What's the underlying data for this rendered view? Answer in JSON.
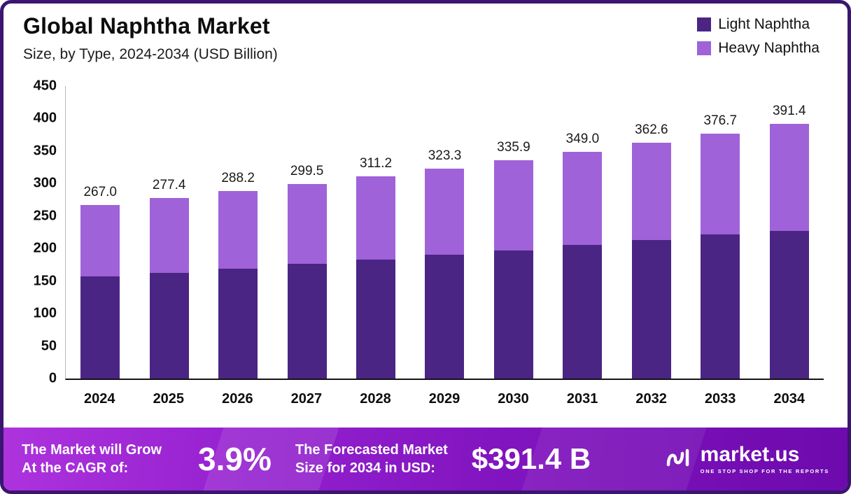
{
  "header": {
    "title": "Global Naphtha Market",
    "subtitle": "Size, by Type, 2024-2034 (USD Billion)"
  },
  "legend": {
    "items": [
      {
        "label": "Light Naphtha",
        "color": "#4a2583"
      },
      {
        "label": "Heavy Naphtha",
        "color": "#a062d8"
      }
    ]
  },
  "chart_data": {
    "type": "bar",
    "stacked": true,
    "title": "Global Naphtha Market",
    "subtitle": "Size, by Type, 2024-2034 (USD Billion)",
    "xlabel": "",
    "ylabel": "",
    "ylim": [
      0,
      450
    ],
    "yticks": [
      0,
      50,
      100,
      150,
      200,
      250,
      300,
      350,
      400,
      450
    ],
    "grid": false,
    "legend_position": "top-right",
    "categories": [
      "2024",
      "2025",
      "2026",
      "2027",
      "2028",
      "2029",
      "2030",
      "2031",
      "2032",
      "2033",
      "2034"
    ],
    "series": [
      {
        "name": "Light Naphtha",
        "color": "#4a2583",
        "values": [
          157.0,
          163.1,
          169.5,
          176.1,
          183.0,
          190.1,
          197.5,
          205.2,
          213.2,
          221.5,
          227.0
        ]
      },
      {
        "name": "Heavy Naphtha",
        "color": "#a062d8",
        "values": [
          110.0,
          114.3,
          118.7,
          123.4,
          128.2,
          133.2,
          138.4,
          143.8,
          149.4,
          155.2,
          164.4
        ]
      }
    ],
    "totals": [
      267.0,
      277.4,
      288.2,
      299.5,
      311.2,
      323.3,
      335.9,
      349.0,
      362.6,
      376.7,
      391.4
    ]
  },
  "banner": {
    "cagr_label_line1": "The Market will Grow",
    "cagr_label_line2": "At the CAGR of:",
    "cagr_value": "3.9%",
    "forecast_label_line1": "The Forecasted Market",
    "forecast_label_line2": "Size for 2034 in USD:",
    "forecast_value": "$391.4 B",
    "logo_text": "market.us",
    "logo_tagline": "ONE STOP SHOP FOR THE REPORTS"
  }
}
